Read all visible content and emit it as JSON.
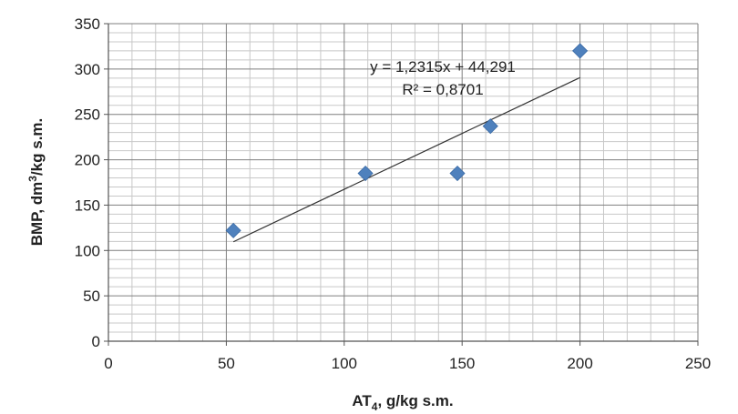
{
  "chart_data": {
    "type": "scatter",
    "title": "",
    "xlabel": {
      "prefix": "AT",
      "sub": "4",
      "suffix": ", g/kg s.m."
    },
    "ylabel": {
      "prefix": "BMP, dm",
      "sup": "3",
      "suffix": "/kg s.m."
    },
    "xlim": [
      0,
      250
    ],
    "ylim": [
      0,
      350
    ],
    "x_ticks": [
      "0",
      "50",
      "100",
      "150",
      "200",
      "250"
    ],
    "y_ticks": [
      "0",
      "50",
      "100",
      "150",
      "200",
      "250",
      "300",
      "350"
    ],
    "grid": true,
    "legend": "none",
    "marker": "diamond",
    "marker_color": "#4F81BD",
    "series": [
      {
        "points": [
          {
            "x": 53,
            "y": 122
          },
          {
            "x": 109,
            "y": 185
          },
          {
            "x": 148,
            "y": 185
          },
          {
            "x": 162,
            "y": 237
          },
          {
            "x": 200,
            "y": 320
          }
        ]
      }
    ],
    "trendline": {
      "type": "linear",
      "slope": 1.2315,
      "intercept": 44.291,
      "x_range": [
        53,
        200
      ],
      "color": "#333333"
    },
    "annotations": {
      "equation": "y = 1,2315x + 44,291",
      "r_squared": "R² = 0,8701"
    }
  }
}
